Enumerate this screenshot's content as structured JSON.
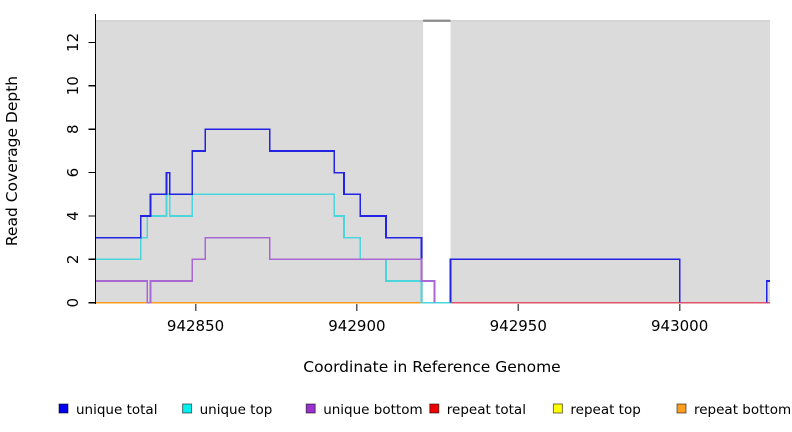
{
  "page": {
    "background": "#ffffff"
  },
  "chart_data": {
    "type": "line",
    "step": true,
    "title": "",
    "xlabel": "Coordinate in Reference Genome",
    "ylabel": "Read Coverage Depth",
    "xlim": [
      942819,
      943028
    ],
    "ylim": [
      0,
      13.3
    ],
    "x_ticks": [
      942850,
      942900,
      942950,
      943000
    ],
    "y_ticks": [
      0,
      2,
      4,
      6,
      8,
      10,
      12
    ],
    "grid": false,
    "legend_position": "bottom",
    "background_bands": {
      "color": "#dbdbdb",
      "top_value": 13,
      "regions": [
        [
          942819,
          942920.5
        ],
        [
          942929,
          943028
        ]
      ],
      "top_border_color": "#c6c6c6",
      "gap_top_line": {
        "from": 942920.5,
        "to": 942929,
        "color": "#8a8a8a"
      }
    },
    "series": [
      {
        "name": "unique total",
        "color": "#2323e6",
        "segments": [
          [
            [
              942819,
              3
            ],
            [
              942833,
              4
            ],
            [
              942836,
              5
            ],
            [
              942841,
              6
            ],
            [
              942842,
              5
            ],
            [
              942849,
              7
            ],
            [
              942853,
              8
            ],
            [
              942873,
              7
            ],
            [
              942893,
              6
            ],
            [
              942896,
              5
            ],
            [
              942901,
              4
            ],
            [
              942909,
              3
            ],
            [
              942920,
              1
            ],
            [
              942924,
              0
            ]
          ],
          [
            [
              942929,
              0
            ],
            [
              942929,
              2
            ],
            [
              943000,
              0
            ]
          ],
          [
            [
              943027,
              0
            ],
            [
              943027,
              1
            ],
            [
              943028,
              1
            ]
          ]
        ]
      },
      {
        "name": "unique top",
        "color": "#4bd6dd",
        "segments": [
          [
            [
              942819,
              2
            ],
            [
              942833,
              3
            ],
            [
              942835,
              4
            ],
            [
              942841,
              5
            ],
            [
              942842,
              4
            ],
            [
              942849,
              5
            ],
            [
              942893,
              4
            ],
            [
              942896,
              3
            ],
            [
              942901,
              2
            ],
            [
              942909,
              1
            ],
            [
              942920,
              0
            ],
            [
              942929,
              0
            ],
            [
              942929,
              2
            ],
            [
              943000,
              0
            ]
          ],
          [
            [
              943027,
              0
            ],
            [
              943027,
              1
            ],
            [
              943028,
              1
            ]
          ]
        ]
      },
      {
        "name": "unique bottom",
        "color": "#a868d4",
        "segments": [
          [
            [
              942819,
              1
            ],
            [
              942835,
              0
            ],
            [
              942836,
              1
            ],
            [
              942849,
              2
            ],
            [
              942853,
              3
            ],
            [
              942873,
              2
            ],
            [
              942920,
              1
            ],
            [
              942924,
              0
            ]
          ]
        ]
      },
      {
        "name": "repeat total",
        "color": "#dd5566",
        "segments": [
          [
            [
              942819,
              0
            ],
            [
              943028,
              0
            ]
          ]
        ]
      },
      {
        "name": "repeat top",
        "color": "#ffff00",
        "segments": [
          [
            [
              942819,
              0
            ],
            [
              942920,
              0
            ]
          ]
        ]
      },
      {
        "name": "repeat bottom",
        "color": "#ff9d20",
        "segments": [
          [
            [
              942819,
              0
            ],
            [
              942920,
              0
            ]
          ]
        ]
      }
    ],
    "draw_order": [
      3,
      4,
      5,
      1,
      0,
      2
    ]
  },
  "legend": {
    "items": [
      {
        "label": "unique total",
        "swatch": "#0000ee"
      },
      {
        "label": "unique top",
        "swatch": "#00eeee"
      },
      {
        "label": "unique bottom",
        "swatch": "#9932cc"
      },
      {
        "label": "repeat total",
        "swatch": "#ee0000"
      },
      {
        "label": "repeat top",
        "swatch": "#ffff00"
      },
      {
        "label": "repeat bottom",
        "swatch": "#ff9d20"
      }
    ]
  }
}
